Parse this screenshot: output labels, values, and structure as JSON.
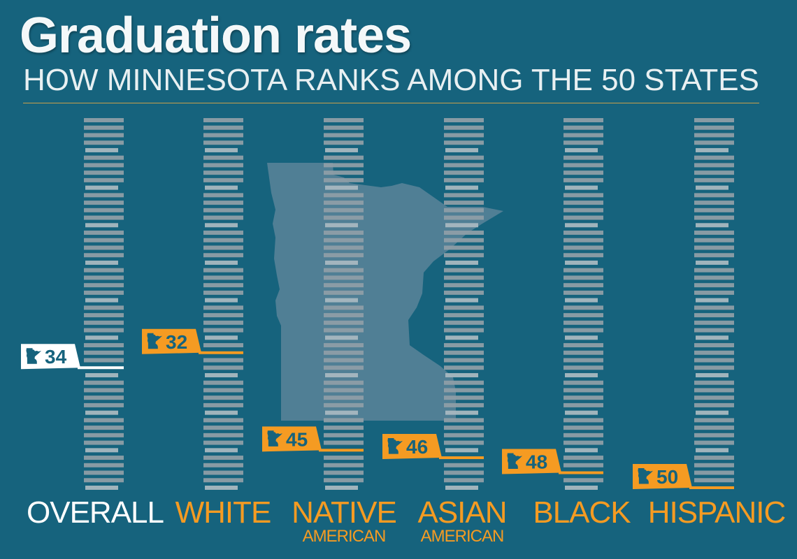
{
  "title": "Graduation rates",
  "subtitle": "HOW MINNESOTA RANKS AMONG THE 50 STATES",
  "colors": {
    "background": "#16637d",
    "bar": "#8e9ea6",
    "bar_highlight": "#a8b8c0",
    "overall_accent": "#ffffff",
    "group_accent": "#f59b22",
    "rank_text": "#16637d",
    "state_shape": "#5b8499"
  },
  "chart_data": {
    "type": "bar",
    "title": "Graduation rates",
    "subtitle": "HOW MINNESOTA RANKS AMONG THE 50 STATES",
    "total_states": 50,
    "columns": [
      {
        "label": "OVERALL",
        "sublabel": "",
        "rank": 34,
        "accent": "overall"
      },
      {
        "label": "WHITE",
        "sublabel": "",
        "rank": 32,
        "accent": "group"
      },
      {
        "label": "NATIVE",
        "sublabel": "AMERICAN",
        "rank": 45,
        "accent": "group"
      },
      {
        "label": "ASIAN",
        "sublabel": "AMERICAN",
        "rank": 46,
        "accent": "group"
      },
      {
        "label": "BLACK",
        "sublabel": "",
        "rank": 48,
        "accent": "group"
      },
      {
        "label": "HISPANIC",
        "sublabel": "",
        "rank": 50,
        "accent": "group"
      }
    ]
  }
}
